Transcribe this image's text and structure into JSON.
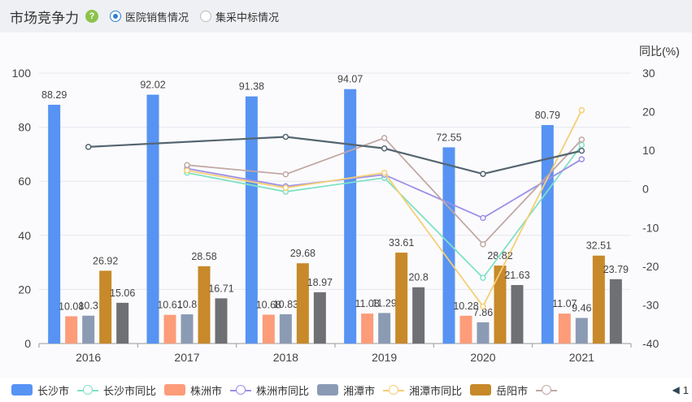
{
  "header": {
    "title": "市场竞争力",
    "help_icon": "?",
    "tabs": [
      {
        "label": "医院销售情况",
        "selected": true
      },
      {
        "label": "集采中标情况",
        "selected": false
      }
    ]
  },
  "chart_data": {
    "type": "bar",
    "categories": [
      "2016",
      "2017",
      "2018",
      "2019",
      "2020",
      "2021"
    ],
    "y_left": {
      "min": 0,
      "max": 100,
      "ticks": [
        "0",
        "20",
        "40",
        "60",
        "80",
        "100"
      ]
    },
    "y_right": {
      "label": "同比(%)",
      "min": -40,
      "max": 30,
      "ticks": [
        "-40",
        "-30",
        "-20",
        "-10",
        "0",
        "10",
        "20",
        "30"
      ]
    },
    "bar_series": [
      {
        "name": "长沙市",
        "color": "#5793f3",
        "values": [
          88.29,
          92.02,
          91.38,
          94.07,
          72.55,
          80.79
        ],
        "labels": [
          "88.29",
          "92.02",
          "91.38",
          "94.07",
          "72.55",
          "80.79"
        ]
      },
      {
        "name": "株洲市",
        "color": "#fd9c79",
        "values": [
          10.08,
          10.61,
          10.68,
          11.08,
          10.28,
          11.07
        ],
        "labels": [
          "10.08",
          "10.61",
          "10.68",
          "11.08",
          "10.28",
          "11.07"
        ]
      },
      {
        "name": "湘潭市",
        "color": "#8b9bb4",
        "values": [
          10.3,
          10.8,
          10.83,
          11.29,
          7.86,
          9.46
        ],
        "labels": [
          "10.3",
          "10.8",
          "10.83",
          "11.29",
          "7.86",
          "9.46"
        ]
      },
      {
        "name": "岳阳市",
        "color": "#c7892a",
        "values": [
          26.92,
          28.58,
          29.68,
          33.61,
          28.82,
          32.51
        ],
        "labels": [
          "26.92",
          "28.58",
          "29.68",
          "33.61",
          "28.82",
          "32.51"
        ]
      },
      {
        "name": "",
        "color": "#6e7074",
        "values": [
          15.06,
          16.71,
          18.97,
          20.8,
          21.63,
          23.79
        ],
        "labels": [
          "15.06",
          "16.71",
          "18.97",
          "20.8",
          "21.63",
          "23.79"
        ]
      }
    ],
    "line_series": [
      {
        "name": "长沙市同比",
        "color": "#7fe1c6",
        "values": [
          null,
          4.2,
          -0.7,
          2.9,
          -23.0,
          11.4
        ]
      },
      {
        "name": "株洲市同比",
        "color": "#9c8fe8",
        "values": [
          null,
          5.3,
          0.7,
          3.7,
          -7.5,
          7.7
        ]
      },
      {
        "name": "湘潭市同比",
        "color": "#f5cf74",
        "values": [
          null,
          4.8,
          0.3,
          4.2,
          -30.4,
          20.4
        ]
      },
      {
        "name": "",
        "color": "#c1a8a4",
        "values": [
          null,
          6.2,
          3.8,
          13.2,
          -14.3,
          12.8
        ]
      },
      {
        "name": "",
        "color": "#546570",
        "values": [
          10.9,
          null,
          13.5,
          10.5,
          3.9,
          9.9
        ]
      }
    ]
  },
  "legend": {
    "items": [
      {
        "label": "长沙市",
        "kind": "bar",
        "color": "#5793f3"
      },
      {
        "label": "长沙市同比",
        "kind": "line",
        "color": "#7fe1c6"
      },
      {
        "label": "株洲市",
        "kind": "bar",
        "color": "#fd9c79"
      },
      {
        "label": "株洲市同比",
        "kind": "line",
        "color": "#9c8fe8"
      },
      {
        "label": "湘潭市",
        "kind": "bar",
        "color": "#8b9bb4"
      },
      {
        "label": "湘潭市同比",
        "kind": "line",
        "color": "#f5cf74"
      },
      {
        "label": "岳阳市",
        "kind": "bar",
        "color": "#c7892a"
      },
      {
        "label": "",
        "kind": "line",
        "color": "#c1a8a4"
      }
    ],
    "pager_icon": "chevron-left-icon",
    "pager_text": "1"
  }
}
